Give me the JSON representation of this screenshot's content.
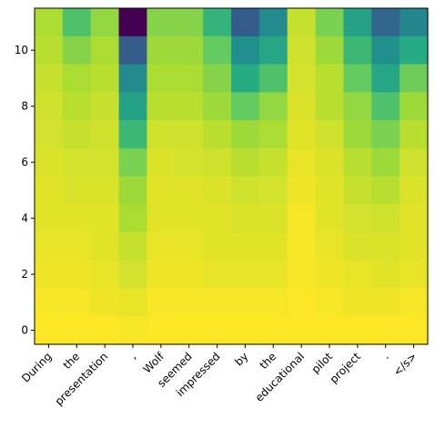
{
  "chart_data": {
    "type": "heatmap",
    "colormap": "viridis",
    "x_categories": [
      "During",
      "the",
      "presentation",
      ",",
      "Wolf",
      "seemed",
      "impressed",
      "by",
      "the",
      "educational",
      "pilot",
      "project",
      ".",
      "</s>"
    ],
    "y_ticks": [
      0,
      2,
      4,
      6,
      8,
      10
    ],
    "ylim": [
      -0.5,
      11.5
    ],
    "vmin": 0,
    "vmax": 1,
    "rows_top_to_bottom": [
      [
        0.88,
        0.72,
        0.84,
        0.0,
        0.82,
        0.82,
        0.66,
        0.3,
        0.48,
        0.92,
        0.8,
        0.58,
        0.34,
        0.46
      ],
      [
        0.9,
        0.82,
        0.88,
        0.3,
        0.86,
        0.86,
        0.76,
        0.5,
        0.6,
        0.93,
        0.86,
        0.68,
        0.5,
        0.62
      ],
      [
        0.92,
        0.88,
        0.9,
        0.48,
        0.88,
        0.88,
        0.82,
        0.62,
        0.72,
        0.94,
        0.9,
        0.76,
        0.6,
        0.78
      ],
      [
        0.93,
        0.9,
        0.92,
        0.58,
        0.9,
        0.9,
        0.86,
        0.76,
        0.84,
        0.95,
        0.9,
        0.84,
        0.72,
        0.86
      ],
      [
        0.94,
        0.92,
        0.93,
        0.68,
        0.93,
        0.93,
        0.9,
        0.86,
        0.88,
        0.96,
        0.93,
        0.86,
        0.8,
        0.9
      ],
      [
        0.95,
        0.94,
        0.94,
        0.8,
        0.95,
        0.94,
        0.93,
        0.9,
        0.92,
        0.97,
        0.95,
        0.9,
        0.86,
        0.93
      ],
      [
        0.96,
        0.95,
        0.95,
        0.86,
        0.96,
        0.96,
        0.95,
        0.93,
        0.94,
        0.98,
        0.96,
        0.92,
        0.9,
        0.95
      ],
      [
        0.96,
        0.96,
        0.96,
        0.88,
        0.96,
        0.96,
        0.96,
        0.95,
        0.95,
        0.99,
        0.96,
        0.94,
        0.93,
        0.96
      ],
      [
        0.97,
        0.97,
        0.96,
        0.92,
        0.97,
        0.97,
        0.96,
        0.96,
        0.96,
        0.99,
        0.97,
        0.95,
        0.95,
        0.96
      ],
      [
        0.98,
        0.98,
        0.97,
        0.94,
        0.98,
        0.98,
        0.97,
        0.97,
        0.97,
        0.99,
        0.98,
        0.97,
        0.96,
        0.97
      ],
      [
        0.99,
        0.99,
        0.98,
        0.97,
        0.99,
        0.99,
        0.99,
        0.99,
        0.99,
        1.0,
        0.99,
        0.98,
        0.98,
        0.99
      ],
      [
        1.0,
        1.0,
        1.0,
        0.99,
        1.0,
        1.0,
        1.0,
        1.0,
        1.0,
        1.0,
        1.0,
        1.0,
        1.0,
        1.0
      ]
    ]
  }
}
